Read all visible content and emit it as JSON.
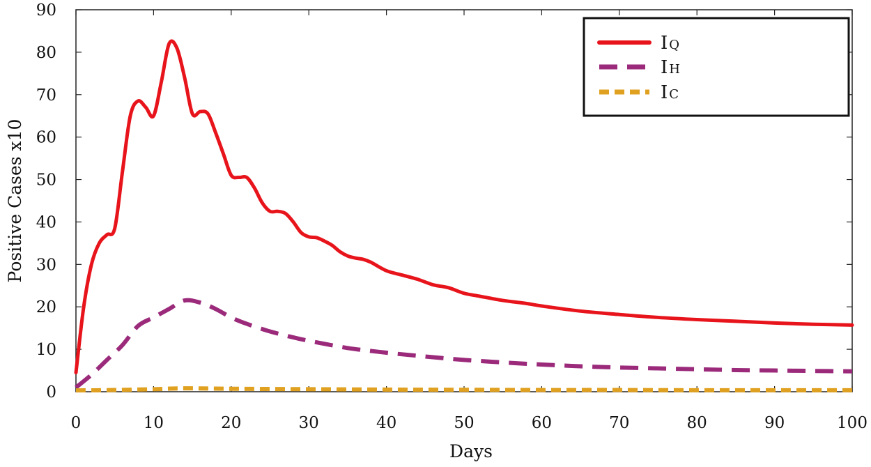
{
  "chart_data": {
    "type": "line",
    "title": "",
    "xlabel": "Days",
    "ylabel": "Positive Cases x10",
    "xlim": [
      0,
      100
    ],
    "ylim": [
      0,
      90
    ],
    "xticks": [
      0,
      10,
      20,
      30,
      40,
      50,
      60,
      70,
      80,
      90,
      100
    ],
    "yticks": [
      0,
      10,
      20,
      30,
      40,
      50,
      60,
      70,
      80,
      90
    ],
    "grid": false,
    "legend_position": "top-right",
    "series": [
      {
        "name": "IQ",
        "label_main": "I",
        "label_sub": "Q",
        "color": "#e8141b",
        "style": "solid",
        "x": [
          0,
          1,
          2,
          3,
          4,
          5,
          6,
          7,
          8,
          9,
          10,
          11,
          12,
          13,
          14,
          15,
          16,
          17,
          18,
          19,
          20,
          21,
          22,
          23,
          24,
          25,
          26,
          27,
          28,
          29,
          30,
          31,
          32,
          33,
          34,
          35,
          36,
          37,
          38,
          40,
          42,
          44,
          46,
          48,
          50,
          52,
          55,
          58,
          60,
          65,
          70,
          75,
          80,
          85,
          90,
          95,
          100
        ],
        "y": [
          4.5,
          20,
          30,
          35,
          37,
          38.5,
          52,
          65,
          68.5,
          67,
          65,
          73,
          82,
          81,
          74,
          65.5,
          66,
          65.5,
          61,
          56,
          51,
          50.5,
          50.5,
          48,
          44.5,
          42.5,
          42.5,
          42,
          40,
          37.5,
          36.5,
          36.3,
          35.5,
          34.5,
          33,
          32,
          31.5,
          31.2,
          30.5,
          28.5,
          27.5,
          26.5,
          25.2,
          24.5,
          23.2,
          22.5,
          21.5,
          20.8,
          20.2,
          19,
          18.2,
          17.5,
          17,
          16.6,
          16.2,
          15.9,
          15.7
        ]
      },
      {
        "name": "IH",
        "label_main": "I",
        "label_sub": "H",
        "color": "#9b2a7b",
        "style": "dashed",
        "x": [
          0,
          2,
          4,
          6,
          8,
          10,
          12,
          14,
          16,
          18,
          20,
          22,
          25,
          28,
          30,
          35,
          40,
          45,
          50,
          55,
          60,
          65,
          70,
          75,
          80,
          85,
          90,
          95,
          100
        ],
        "y": [
          1,
          4,
          7.5,
          11,
          15.5,
          17.5,
          19.5,
          21.5,
          21,
          19.5,
          17.5,
          16,
          14.2,
          12.8,
          12,
          10.3,
          9.2,
          8.3,
          7.5,
          6.9,
          6.4,
          6,
          5.7,
          5.5,
          5.3,
          5.1,
          5,
          4.9,
          4.8
        ]
      },
      {
        "name": "IC",
        "label_main": "I",
        "label_sub": "C",
        "color": "#e0a020",
        "style": "dotted",
        "x": [
          0,
          5,
          10,
          14,
          20,
          30,
          40,
          50,
          60,
          70,
          80,
          90,
          100
        ],
        "y": [
          0.3,
          0.4,
          0.6,
          0.8,
          0.7,
          0.6,
          0.5,
          0.45,
          0.4,
          0.4,
          0.35,
          0.35,
          0.35
        ]
      }
    ]
  }
}
